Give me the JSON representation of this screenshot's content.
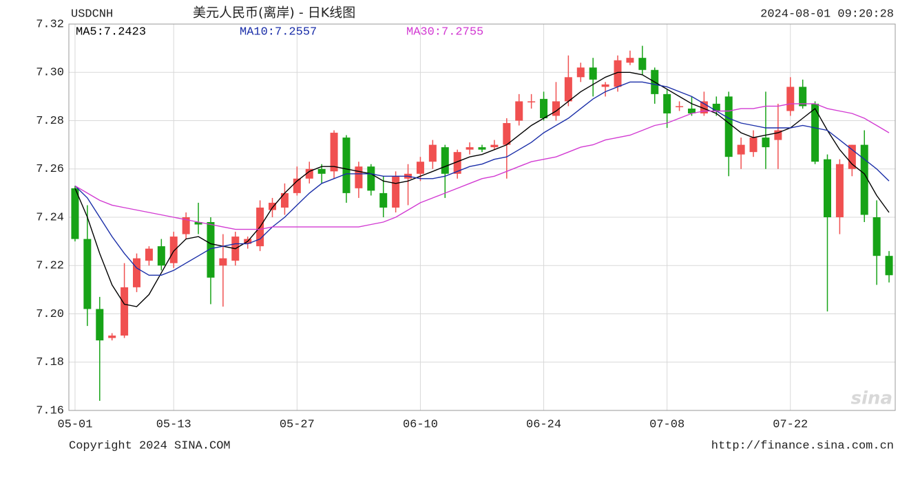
{
  "chart_data": {
    "type": "candlestick",
    "symbol": "USDCNH",
    "title": "美元人民币(离岸) - 日K线图",
    "timestamp": "2024-08-01 09:20:28",
    "copyright": "Copyright 2024 SINA.COM",
    "source": "http://finance.sina.com.cn",
    "watermark": "sina",
    "categories": [
      "05-01",
      null,
      null,
      null,
      null,
      null,
      null,
      null,
      "05-13",
      null,
      null,
      null,
      null,
      null,
      null,
      null,
      null,
      null,
      "05-27",
      null,
      null,
      null,
      null,
      null,
      null,
      null,
      null,
      null,
      "06-10",
      null,
      null,
      null,
      null,
      null,
      null,
      null,
      null,
      null,
      "06-24",
      null,
      null,
      null,
      null,
      null,
      null,
      null,
      null,
      null,
      "07-08",
      null,
      null,
      null,
      null,
      null,
      null,
      null,
      null,
      null,
      "07-22",
      null,
      null,
      null,
      null,
      null,
      null,
      null,
      null
    ],
    "ohlc": [
      [
        7.252,
        7.253,
        7.23,
        7.231
      ],
      [
        7.231,
        7.245,
        7.195,
        7.202
      ],
      [
        7.202,
        7.207,
        7.164,
        7.189
      ],
      [
        7.19,
        7.192,
        7.189,
        7.191
      ],
      [
        7.191,
        7.221,
        7.19,
        7.211
      ],
      [
        7.211,
        7.225,
        7.209,
        7.223
      ],
      [
        7.222,
        7.228,
        7.22,
        7.227
      ],
      [
        7.228,
        7.231,
        7.218,
        7.22
      ],
      [
        7.221,
        7.234,
        7.219,
        7.232
      ],
      [
        7.233,
        7.242,
        7.231,
        7.24
      ],
      [
        7.238,
        7.246,
        7.233,
        7.237
      ],
      [
        7.238,
        7.24,
        7.204,
        7.215
      ],
      [
        7.22,
        7.233,
        7.203,
        7.223
      ],
      [
        7.222,
        7.234,
        7.22,
        7.232
      ],
      [
        7.229,
        7.232,
        7.227,
        7.231
      ],
      [
        7.228,
        7.247,
        7.226,
        7.244
      ],
      [
        7.243,
        7.248,
        7.24,
        7.246
      ],
      [
        7.244,
        7.254,
        7.241,
        7.25
      ],
      [
        7.25,
        7.261,
        7.249,
        7.256
      ],
      [
        7.256,
        7.263,
        7.254,
        7.26
      ],
      [
        7.26,
        7.262,
        7.254,
        7.258
      ],
      [
        7.259,
        7.276,
        7.256,
        7.275
      ],
      [
        7.273,
        7.274,
        7.246,
        7.25
      ],
      [
        7.252,
        7.263,
        7.248,
        7.261
      ],
      [
        7.261,
        7.262,
        7.249,
        7.251
      ],
      [
        7.25,
        7.257,
        7.24,
        7.244
      ],
      [
        7.244,
        7.259,
        7.242,
        7.257
      ],
      [
        7.256,
        7.262,
        7.245,
        7.258
      ],
      [
        7.258,
        7.265,
        7.255,
        7.263
      ],
      [
        7.263,
        7.272,
        7.26,
        7.27
      ],
      [
        7.269,
        7.27,
        7.248,
        7.258
      ],
      [
        7.258,
        7.268,
        7.256,
        7.267
      ],
      [
        7.268,
        7.271,
        7.266,
        7.269
      ],
      [
        7.269,
        7.27,
        7.267,
        7.268
      ],
      [
        7.269,
        7.272,
        7.268,
        7.27
      ],
      [
        7.27,
        7.281,
        7.256,
        7.279
      ],
      [
        7.28,
        7.291,
        7.278,
        7.288
      ],
      [
        7.288,
        7.291,
        7.285,
        7.288
      ],
      [
        7.289,
        7.292,
        7.28,
        7.281
      ],
      [
        7.282,
        7.296,
        7.28,
        7.288
      ],
      [
        7.288,
        7.307,
        7.286,
        7.298
      ],
      [
        7.298,
        7.304,
        7.296,
        7.302
      ],
      [
        7.302,
        7.306,
        7.29,
        7.297
      ],
      [
        7.294,
        7.296,
        7.29,
        7.295
      ],
      [
        7.294,
        7.307,
        7.292,
        7.305
      ],
      [
        7.304,
        7.309,
        7.303,
        7.306
      ],
      [
        7.306,
        7.311,
        7.299,
        7.301
      ],
      [
        7.301,
        7.302,
        7.287,
        7.291
      ],
      [
        7.291,
        7.293,
        7.277,
        7.283
      ],
      [
        7.286,
        7.288,
        7.284,
        7.286
      ],
      [
        7.285,
        7.29,
        7.282,
        7.283
      ],
      [
        7.283,
        7.292,
        7.282,
        7.288
      ],
      [
        7.287,
        7.29,
        7.282,
        7.284
      ],
      [
        7.29,
        7.292,
        7.257,
        7.265
      ],
      [
        7.266,
        7.273,
        7.26,
        7.27
      ],
      [
        7.267,
        7.276,
        7.265,
        7.273
      ],
      [
        7.273,
        7.292,
        7.26,
        7.269
      ],
      [
        7.272,
        7.287,
        7.26,
        7.276
      ],
      [
        7.284,
        7.298,
        7.282,
        7.294
      ],
      [
        7.294,
        7.297,
        7.285,
        7.286
      ],
      [
        7.287,
        7.288,
        7.262,
        7.263
      ],
      [
        7.264,
        7.266,
        7.201,
        7.24
      ],
      [
        7.24,
        7.264,
        7.233,
        7.262
      ],
      [
        7.26,
        7.27,
        7.257,
        7.27
      ],
      [
        7.27,
        7.276,
        7.238,
        7.241
      ],
      [
        7.24,
        7.247,
        7.212,
        7.224
      ],
      [
        7.224,
        7.226,
        7.213,
        7.216
      ]
    ],
    "up_color": "#f05050",
    "down_color": "#17a317",
    "series": [
      {
        "name": "MA5:7.2423",
        "color": "#000000",
        "values": [
          7.252,
          7.24,
          7.225,
          7.212,
          7.204,
          7.203,
          7.208,
          7.217,
          7.226,
          7.231,
          7.232,
          7.229,
          7.228,
          7.227,
          7.23,
          7.236,
          7.244,
          7.25,
          7.255,
          7.259,
          7.261,
          7.261,
          7.26,
          7.259,
          7.258,
          7.255,
          7.254,
          7.255,
          7.257,
          7.259,
          7.261,
          7.263,
          7.265,
          7.266,
          7.268,
          7.27,
          7.274,
          7.278,
          7.281,
          7.284,
          7.288,
          7.292,
          7.295,
          7.298,
          7.3,
          7.3,
          7.299,
          7.296,
          7.293,
          7.29,
          7.287,
          7.285,
          7.283,
          7.279,
          7.275,
          7.273,
          7.274,
          7.275,
          7.277,
          7.281,
          7.285,
          7.276,
          7.268,
          7.262,
          7.258,
          7.249,
          7.242
        ]
      },
      {
        "name": "MA10:7.2557",
        "color": "#1a2ea8",
        "values": [
          7.253,
          7.248,
          7.24,
          7.232,
          7.225,
          7.219,
          7.216,
          7.216,
          7.218,
          7.221,
          7.224,
          7.227,
          7.228,
          7.229,
          7.229,
          7.231,
          7.236,
          7.24,
          7.245,
          7.25,
          7.254,
          7.256,
          7.258,
          7.258,
          7.258,
          7.257,
          7.257,
          7.257,
          7.256,
          7.256,
          7.257,
          7.259,
          7.261,
          7.262,
          7.264,
          7.265,
          7.268,
          7.271,
          7.275,
          7.278,
          7.281,
          7.285,
          7.289,
          7.292,
          7.294,
          7.296,
          7.296,
          7.295,
          7.294,
          7.292,
          7.29,
          7.287,
          7.284,
          7.281,
          7.279,
          7.278,
          7.277,
          7.277,
          7.277,
          7.278,
          7.277,
          7.276,
          7.272,
          7.268,
          7.264,
          7.26,
          7.255
        ]
      },
      {
        "name": "MA30:7.2755",
        "color": "#d23ad2",
        "values": [
          7.253,
          7.25,
          7.247,
          7.245,
          7.244,
          7.243,
          7.242,
          7.241,
          7.24,
          7.239,
          7.238,
          7.237,
          7.236,
          7.235,
          7.235,
          7.235,
          7.236,
          7.236,
          7.236,
          7.236,
          7.236,
          7.236,
          7.236,
          7.236,
          7.237,
          7.238,
          7.24,
          7.243,
          7.246,
          7.248,
          7.25,
          7.252,
          7.254,
          7.256,
          7.257,
          7.259,
          7.261,
          7.263,
          7.264,
          7.265,
          7.267,
          7.269,
          7.27,
          7.272,
          7.273,
          7.274,
          7.276,
          7.278,
          7.279,
          7.281,
          7.283,
          7.284,
          7.284,
          7.284,
          7.285,
          7.285,
          7.286,
          7.286,
          7.287,
          7.287,
          7.287,
          7.285,
          7.284,
          7.283,
          7.281,
          7.278,
          7.275
        ]
      }
    ],
    "ylim": [
      7.16,
      7.32
    ],
    "yticks": [
      7.16,
      7.18,
      {
        "value": 7.2,
        "label": "7.20"
      },
      7.22,
      7.24,
      7.26,
      7.28,
      {
        "value": 7.3,
        "label": "7.30"
      },
      7.32
    ],
    "grid": true
  }
}
